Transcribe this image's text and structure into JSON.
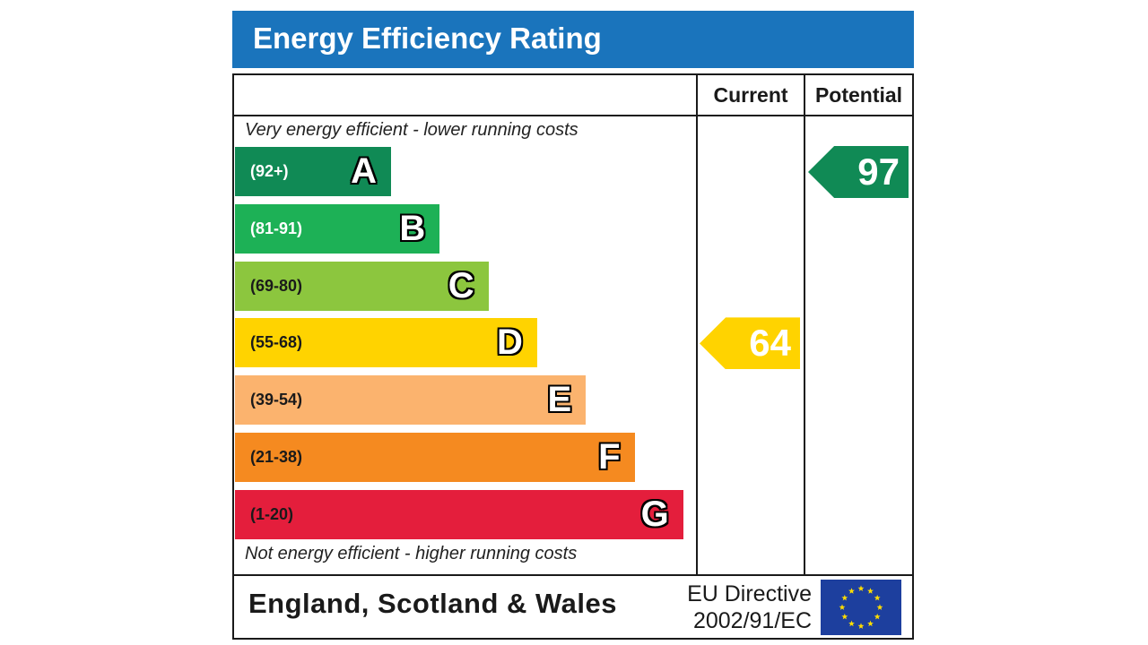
{
  "title": "Energy Efficiency Rating",
  "columns": {
    "current": "Current",
    "potential": "Potential"
  },
  "captions": {
    "top": "Very energy efficient - lower running costs",
    "bottom": "Not energy efficient - higher running costs"
  },
  "bands": [
    {
      "letter": "A",
      "range": "(92+)",
      "color": "#108a55",
      "text_color": "#ffffff"
    },
    {
      "letter": "B",
      "range": "(81-91)",
      "color": "#1db156",
      "text_color": "#ffffff"
    },
    {
      "letter": "C",
      "range": "(69-80)",
      "color": "#8cc63e",
      "text_color": "#1a1a1a"
    },
    {
      "letter": "D",
      "range": "(55-68)",
      "color": "#ffd300",
      "text_color": "#1a1a1a"
    },
    {
      "letter": "E",
      "range": "(39-54)",
      "color": "#fbb36e",
      "text_color": "#1a1a1a"
    },
    {
      "letter": "F",
      "range": "(21-38)",
      "color": "#f58a20",
      "text_color": "#1a1a1a"
    },
    {
      "letter": "G",
      "range": "(1-20)",
      "color": "#e41e3c",
      "text_color": "#1a1a1a"
    }
  ],
  "ratings": {
    "current": {
      "value": "64",
      "band": "D",
      "color": "#ffd300"
    },
    "potential": {
      "value": "97",
      "band": "A",
      "color": "#108a55"
    }
  },
  "footer": {
    "region": "England, Scotland & Wales",
    "directive_line1": "EU Directive",
    "directive_line2": "2002/91/EC",
    "flag_color": "#1d3f9e",
    "star_color": "#ffdd00"
  }
}
